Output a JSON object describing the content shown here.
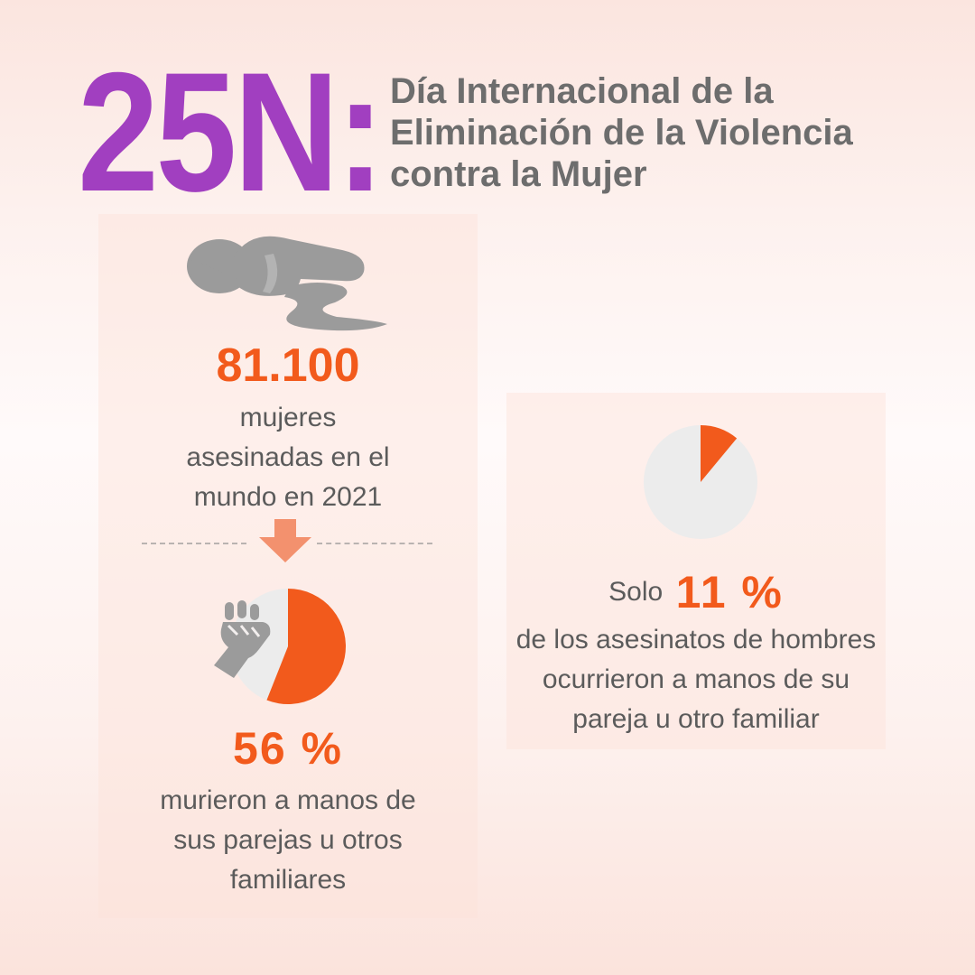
{
  "header": {
    "big_title": "25N:",
    "subtitle_lines": [
      "Día Internacional de la",
      "Eliminación de la Violencia",
      "contra la Mujer"
    ]
  },
  "left_card": {
    "headline_number": "81.100",
    "headline_lines": [
      "mujeres",
      "asesinadas en el",
      "mundo en 2021"
    ],
    "percentage_label": "56 %",
    "percentage_value": 56,
    "percentage_lines": [
      "murieron a manos de",
      "sus parejas u otros",
      "familiares"
    ]
  },
  "right_card": {
    "prefix": "Solo",
    "percentage_label": "11 %",
    "percentage_value": 11,
    "description_lines": [
      "de los asesinatos de hombres",
      "ocurrieron a manos de su",
      "pareja u otro familiar"
    ]
  },
  "icons": {
    "figure": "lying-figure-icon",
    "arrow": "arrow-down-icon",
    "fist": "raised-fist-icon"
  },
  "colors": {
    "title_purple": "#a13fc0",
    "subtitle_gray": "#6d6d6d",
    "accent_orange": "#f25a1c",
    "text_gray": "#5b5b5b",
    "icon_gray": "#9b9b9b",
    "pie_gray": "#ececec",
    "arrow_salmon": "#f3916e"
  }
}
